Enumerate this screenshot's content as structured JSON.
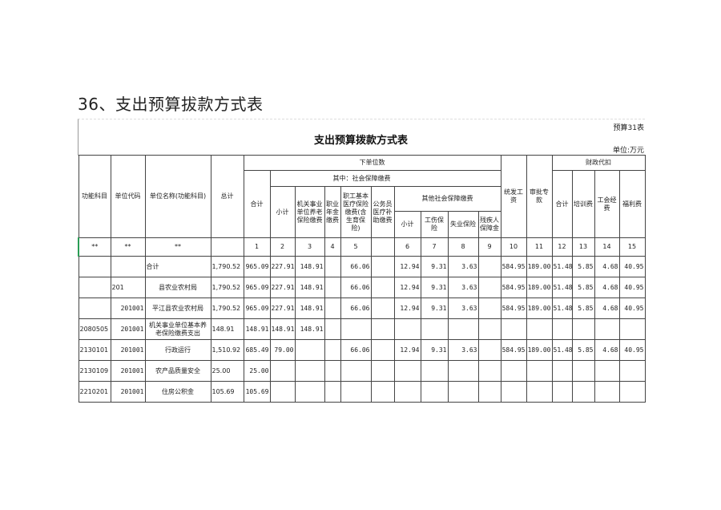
{
  "doc_title": "36、支出预算拔款方式表",
  "table_no": "预算31表",
  "caption": "支出预算拨款方式表",
  "unit": "单位:万元",
  "headers": {
    "func": "功能科目",
    "code": "单位代码",
    "name": "单位名称(功能科目)",
    "total": "总计",
    "lower": "下单位数",
    "sum": "合计",
    "among": "其中：社会保障缴费",
    "subtotal": "小计",
    "pension": "机关事业单位养老保险缴费",
    "annuity": "职业年金缴费",
    "medical": "职工基本医疗保险缴费(含生育保险)",
    "civil": "公务员医疗补助缴费",
    "other": "其他社会保障缴费",
    "sub2": "小计",
    "injury": "工伤保险",
    "unemp": "失业保险",
    "disab": "残疾人保障金",
    "wage": "统发工资",
    "special": "审批专款",
    "fin": "财政代扣",
    "fsum": "合计",
    "train": "培训费",
    "union": "工会经费",
    "welfare": "福利费"
  },
  "index_row": [
    "**",
    "**",
    "**",
    "",
    "1",
    "2",
    "3",
    "4",
    "5",
    "",
    "6",
    "7",
    "8",
    "9",
    "10",
    "11",
    "12",
    "13",
    "14",
    "15"
  ],
  "rows": [
    [
      "",
      "",
      "合计",
      "1,790.52",
      "965.09",
      "227.91",
      "148.91",
      "",
      "66.06",
      "",
      "12.94",
      "9.31",
      "3.63",
      "",
      "584.95",
      "189.00",
      "51.48",
      "5.85",
      "4.68",
      "40.95"
    ],
    [
      "",
      "201",
      "县农业农村局",
      "1,790.52",
      "965.09",
      "227.91",
      "148.91",
      "",
      "66.06",
      "",
      "12.94",
      "9.31",
      "3.63",
      "",
      "584.95",
      "189.00",
      "51.48",
      "5.85",
      "4.68",
      "40.95"
    ],
    [
      "",
      "201001",
      "平江县农业农村局",
      "1,790.52",
      "965.09",
      "227.91",
      "148.91",
      "",
      "66.06",
      "",
      "12.94",
      "9.31",
      "3.63",
      "",
      "584.95",
      "189.00",
      "51.48",
      "5.85",
      "4.68",
      "40.95"
    ],
    [
      "2080505",
      "201001",
      "机关事业单位基本养老保险缴费支出",
      "148.91",
      "148.91",
      "148.91",
      "148.91",
      "",
      "",
      "",
      "",
      "",
      "",
      "",
      "",
      "",
      "",
      "",
      "",
      ""
    ],
    [
      "2130101",
      "201001",
      "行政运行",
      "1,510.92",
      "685.49",
      "79.00",
      "",
      "",
      "66.06",
      "",
      "12.94",
      "9.31",
      "3.63",
      "",
      "584.95",
      "189.00",
      "51.48",
      "5.85",
      "4.68",
      "40.95"
    ],
    [
      "2130109",
      "201001",
      "农产品质量安全",
      "25.00",
      "25.00",
      "",
      "",
      "",
      "",
      "",
      "",
      "",
      "",
      "",
      "",
      "",
      "",
      "",
      "",
      ""
    ],
    [
      "2210201",
      "201001",
      "住房公积金",
      "105.69",
      "105.69",
      "",
      "",
      "",
      "",
      "",
      "",
      "",
      "",
      "",
      "",
      "",
      "",
      "",
      "",
      ""
    ]
  ]
}
